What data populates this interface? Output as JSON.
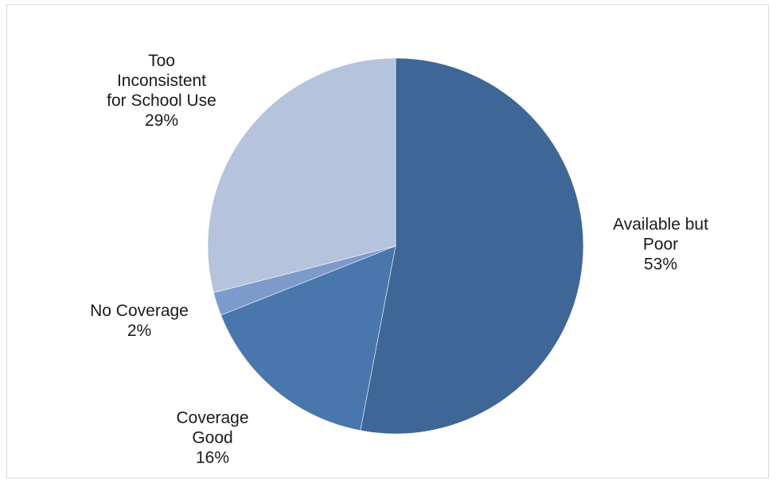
{
  "chart_data": {
    "type": "pie",
    "title": "",
    "start_angle_deg": 0,
    "direction": "clockwise",
    "slices": [
      {
        "name": "Available but Poor",
        "label_lines": [
          "Available but",
          "Poor"
        ],
        "value": 53,
        "percent_label": "53%",
        "color": "#3e6797"
      },
      {
        "name": "Coverage Good",
        "label_lines": [
          "Coverage",
          "Good"
        ],
        "value": 16,
        "percent_label": "16%",
        "color": "#4876ad"
      },
      {
        "name": "No Coverage",
        "label_lines": [
          "No Coverage"
        ],
        "value": 2,
        "percent_label": "2%",
        "color": "#7c9aca"
      },
      {
        "name": "Too Inconsistent for School Use",
        "label_lines": [
          "Too",
          "Inconsistent",
          "for School Use"
        ],
        "value": 29,
        "percent_label": "29%",
        "color": "#b5c3dd"
      }
    ],
    "legend": "none",
    "data_labels": "outside"
  }
}
